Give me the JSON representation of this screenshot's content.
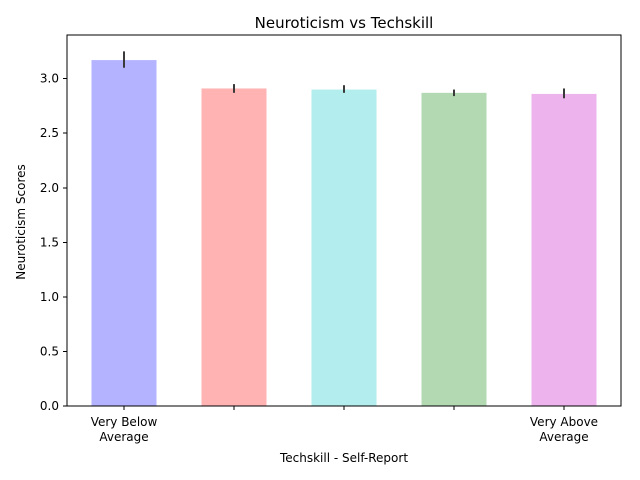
{
  "chart_data": {
    "type": "bar",
    "title": "Neuroticism vs Techskill",
    "xlabel": "Techskill - Self-Report",
    "ylabel": "Neuroticism Scores",
    "categories": [
      [
        "Very Below",
        "Average"
      ],
      [
        ""
      ],
      [
        ""
      ],
      [
        ""
      ],
      [
        "Very Above",
        "Average"
      ]
    ],
    "values": [
      3.17,
      2.91,
      2.9,
      2.87,
      2.86
    ],
    "error_low": [
      3.1,
      2.87,
      2.87,
      2.84,
      2.82
    ],
    "error_high": [
      3.25,
      2.95,
      2.94,
      2.9,
      2.91
    ],
    "colors": [
      "#b3b3ff",
      "#ffb3b3",
      "#b3eded",
      "#b3d9b3",
      "#edb3ed"
    ],
    "ylim": [
      0,
      3.4
    ],
    "yticks": [
      0.0,
      0.5,
      1.0,
      1.5,
      2.0,
      2.5,
      3.0
    ],
    "ytick_labels": [
      "0.0",
      "0.5",
      "1.0",
      "1.5",
      "2.0",
      "2.5",
      "3.0"
    ],
    "grid": false,
    "legend": "none"
  }
}
